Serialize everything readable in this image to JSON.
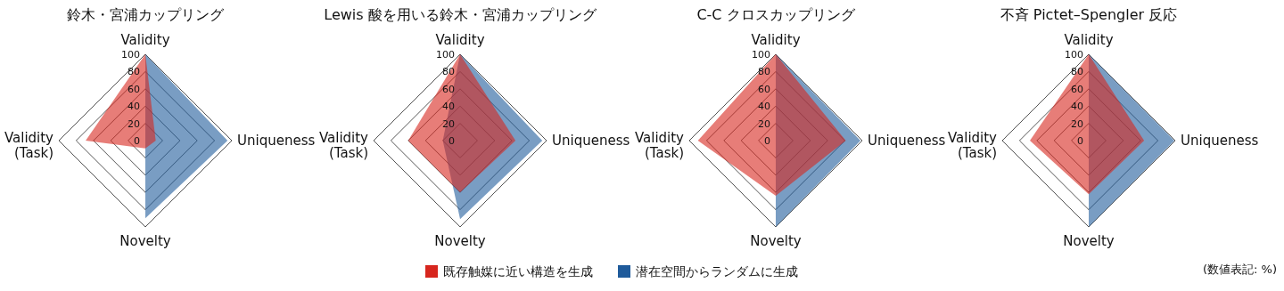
{
  "chart_data": [
    {
      "type": "radar",
      "title": "鈴木・宮浦カップリング",
      "categories": [
        "Validity",
        "Uniqueness",
        "Novelty",
        "Validity\n(Task)"
      ],
      "ylim": [
        0,
        100
      ],
      "yticks": [
        0,
        20,
        40,
        60,
        80,
        100
      ],
      "grid": true,
      "legend": "bottom",
      "series": [
        {
          "name": "潜在空間からランダムに生成",
          "color": "#1f5b9b",
          "values": [
            100,
            95,
            90,
            0
          ]
        },
        {
          "name": "既存触媒に近い構造を生成",
          "color": "#d7261e",
          "values": [
            100,
            12,
            9,
            69
          ]
        }
      ]
    },
    {
      "type": "radar",
      "title": "Lewis 酸を用いる鈴木・宮浦カップリング",
      "categories": [
        "Validity",
        "Uniqueness",
        "Novelty",
        "Validity\n(Task)"
      ],
      "ylim": [
        0,
        100
      ],
      "yticks": [
        0,
        20,
        40,
        60,
        80,
        100
      ],
      "grid": true,
      "series": [
        {
          "color": "#1f5b9b",
          "values": [
            100,
            95,
            91,
            20
          ]
        },
        {
          "color": "#d7261e",
          "values": [
            100,
            64,
            60,
            60
          ]
        }
      ]
    },
    {
      "type": "radar",
      "title": "C-C クロスカップリング",
      "categories": [
        "Validity",
        "Uniqueness",
        "Novelty",
        "Validity\n(Task)"
      ],
      "ylim": [
        0,
        100
      ],
      "yticks": [
        0,
        20,
        40,
        60,
        80,
        100
      ],
      "grid": true,
      "series": [
        {
          "color": "#1f5b9b",
          "values": [
            100,
            98,
            100,
            0
          ]
        },
        {
          "color": "#d7261e",
          "values": [
            100,
            81,
            64,
            90
          ]
        }
      ]
    },
    {
      "type": "radar",
      "title": "不斉 Pictet–Spengler 反応",
      "categories": [
        "Validity",
        "Uniqueness",
        "Novelty",
        "Validity\n(Task)"
      ],
      "ylim": [
        0,
        100
      ],
      "yticks": [
        0,
        20,
        40,
        60,
        80,
        100
      ],
      "grid": true,
      "annotations": [
        "(数値表記: %)"
      ],
      "series": [
        {
          "color": "#1f5b9b",
          "values": [
            100,
            99,
            100,
            0
          ]
        },
        {
          "color": "#d7261e",
          "values": [
            100,
            64,
            62,
            68
          ]
        }
      ]
    }
  ]
}
